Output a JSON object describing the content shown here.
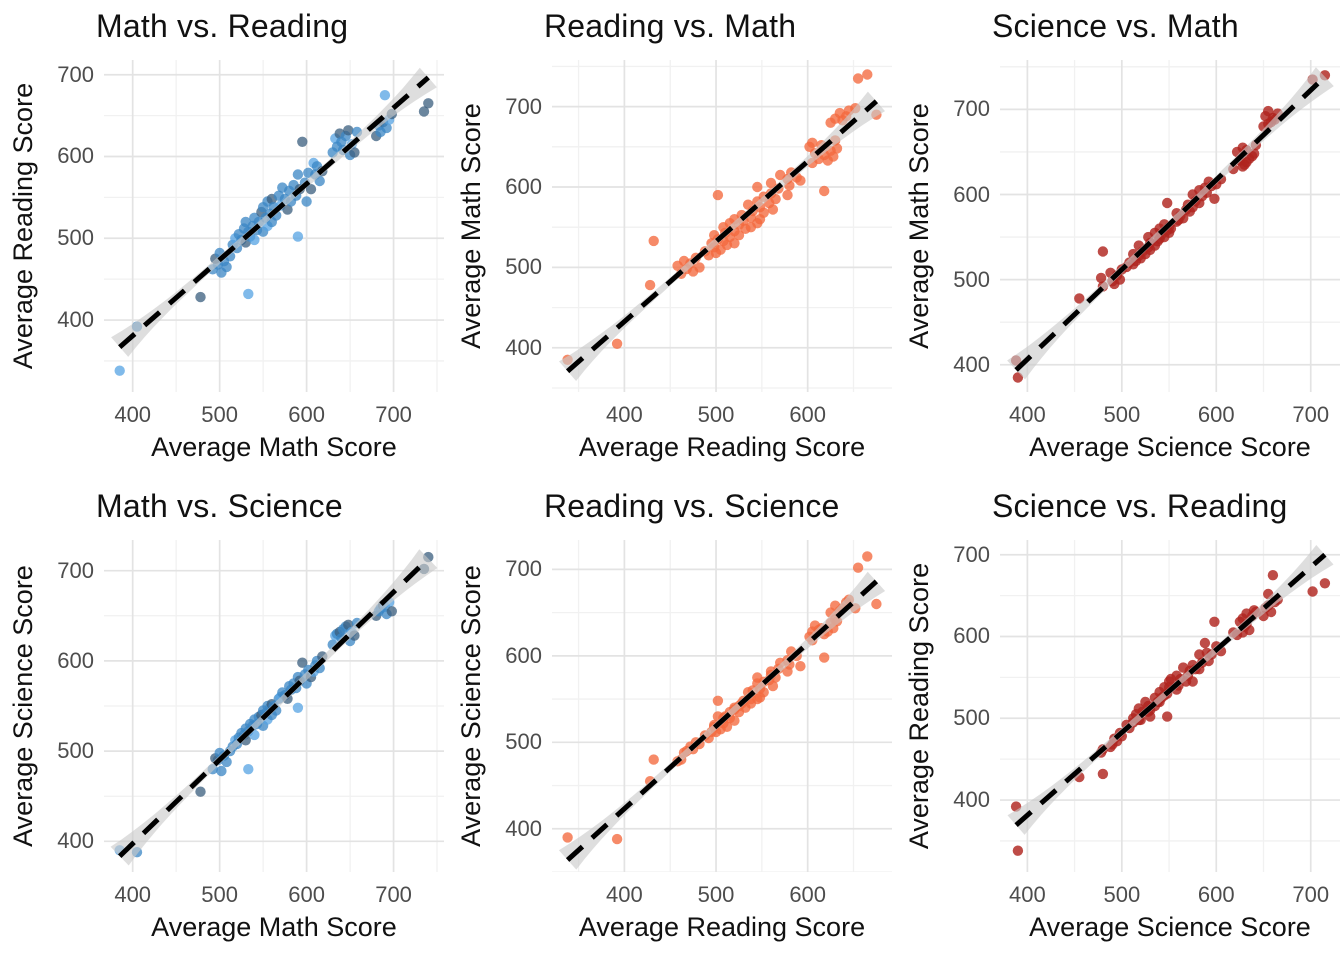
{
  "figure": {
    "background": "#ffffff",
    "grid_major_color": "#e3e3e3",
    "grid_minor_color": "#f1f1f1",
    "tick_label_color": "#4d4d4d",
    "text_color": "#111111",
    "trend_line_color": "#000000",
    "trend_band_color": "#c9c9c9"
  },
  "palette": {
    "blue": {
      "mid": "#3a86c4",
      "light": "#55a3e3",
      "dark": "#3a5e7d",
      "opacity": 0.75
    },
    "orange": {
      "mid": "#f4693d",
      "light": "#f4693d",
      "dark": "#f4693d",
      "opacity": 0.78
    },
    "red": {
      "mid": "#b0251f",
      "light": "#b0251f",
      "dark": "#b0251f",
      "opacity": 0.82
    }
  },
  "dataset": {
    "columns": [
      "math",
      "reading",
      "science",
      "shade"
    ],
    "points": [
      [
        385,
        338,
        390,
        "l"
      ],
      [
        405,
        392,
        388,
        ""
      ],
      [
        478,
        428,
        455,
        "d"
      ],
      [
        533,
        432,
        480,
        "l"
      ],
      [
        492,
        462,
        480,
        ""
      ],
      [
        498,
        468,
        490,
        ""
      ],
      [
        502,
        458,
        478,
        ""
      ],
      [
        505,
        472,
        495,
        ""
      ],
      [
        508,
        465,
        488,
        ""
      ],
      [
        512,
        478,
        500,
        ""
      ],
      [
        495,
        475,
        492,
        "d"
      ],
      [
        500,
        482,
        498,
        ""
      ],
      [
        515,
        492,
        505,
        ""
      ],
      [
        518,
        500,
        512,
        "l"
      ],
      [
        520,
        488,
        508,
        ""
      ],
      [
        522,
        505,
        515,
        ""
      ],
      [
        525,
        498,
        520,
        ""
      ],
      [
        528,
        512,
        518,
        ""
      ],
      [
        530,
        495,
        512,
        "d"
      ],
      [
        530,
        520,
        525,
        ""
      ],
      [
        533,
        508,
        522,
        ""
      ],
      [
        535,
        502,
        530,
        ""
      ],
      [
        538,
        515,
        528,
        ""
      ],
      [
        540,
        498,
        518,
        "l"
      ],
      [
        540,
        525,
        535,
        ""
      ],
      [
        543,
        510,
        530,
        ""
      ],
      [
        545,
        520,
        538,
        ""
      ],
      [
        548,
        532,
        540,
        "d"
      ],
      [
        550,
        508,
        528,
        ""
      ],
      [
        550,
        538,
        545,
        ""
      ],
      [
        553,
        525,
        542,
        ""
      ],
      [
        555,
        515,
        535,
        "l"
      ],
      [
        555,
        545,
        550,
        ""
      ],
      [
        558,
        530,
        548,
        ""
      ],
      [
        560,
        520,
        540,
        ""
      ],
      [
        560,
        548,
        552,
        "d"
      ],
      [
        562,
        538,
        550,
        ""
      ],
      [
        565,
        528,
        545,
        ""
      ],
      [
        568,
        552,
        558,
        ""
      ],
      [
        570,
        540,
        560,
        "l"
      ],
      [
        572,
        562,
        565,
        ""
      ],
      [
        575,
        548,
        562,
        ""
      ],
      [
        578,
        535,
        558,
        "d"
      ],
      [
        580,
        558,
        572,
        ""
      ],
      [
        582,
        545,
        568,
        ""
      ],
      [
        585,
        565,
        575,
        ""
      ],
      [
        588,
        552,
        570,
        ""
      ],
      [
        590,
        502,
        548,
        "l"
      ],
      [
        590,
        578,
        582,
        ""
      ],
      [
        592,
        560,
        578,
        "d"
      ],
      [
        595,
        618,
        598,
        "d"
      ],
      [
        598,
        568,
        585,
        ""
      ],
      [
        600,
        545,
        575,
        ""
      ],
      [
        602,
        580,
        590,
        ""
      ],
      [
        605,
        560,
        582,
        "d"
      ],
      [
        608,
        592,
        588,
        "l"
      ],
      [
        610,
        578,
        595,
        ""
      ],
      [
        612,
        588,
        600,
        ""
      ],
      [
        615,
        570,
        592,
        ""
      ],
      [
        618,
        582,
        605,
        "d"
      ],
      [
        630,
        605,
        618,
        ""
      ],
      [
        633,
        622,
        628,
        "l"
      ],
      [
        635,
        612,
        630,
        ""
      ],
      [
        638,
        628,
        632,
        "d"
      ],
      [
        640,
        618,
        625,
        ""
      ],
      [
        642,
        608,
        635,
        ""
      ],
      [
        645,
        625,
        638,
        ""
      ],
      [
        648,
        632,
        640,
        "d"
      ],
      [
        650,
        602,
        622,
        ""
      ],
      [
        652,
        615,
        632,
        "l"
      ],
      [
        655,
        605,
        628,
        "d"
      ],
      [
        658,
        630,
        642,
        ""
      ],
      [
        680,
        625,
        650,
        "d"
      ],
      [
        683,
        638,
        655,
        ""
      ],
      [
        685,
        630,
        658,
        ""
      ],
      [
        688,
        642,
        662,
        "d"
      ],
      [
        690,
        675,
        660,
        "l"
      ],
      [
        692,
        635,
        652,
        ""
      ],
      [
        695,
        645,
        665,
        "l"
      ],
      [
        698,
        652,
        655,
        "d"
      ],
      [
        735,
        655,
        702,
        "d"
      ],
      [
        740,
        665,
        715,
        "d"
      ]
    ]
  },
  "chart_data": [
    {
      "type": "scatter",
      "title": "Math vs. Reading",
      "xlabel": "Average Math Score",
      "ylabel": "Average Reading Score",
      "x_field": "math",
      "y_field": "reading",
      "x_ticks": [
        400,
        500,
        600,
        700
      ],
      "y_ticks": [
        400,
        500,
        600,
        700
      ],
      "xlim": [
        367,
        758
      ],
      "ylim": [
        312,
        718
      ],
      "point_style": "blue",
      "trend": {
        "fit": "linear",
        "line": "dashed-black",
        "band": "gray"
      }
    },
    {
      "type": "scatter",
      "title": "Reading vs. Math",
      "xlabel": "Average Reading Score",
      "ylabel": "Average Math Score",
      "x_field": "reading",
      "y_field": "math",
      "x_ticks": [
        400,
        500,
        600
      ],
      "y_ticks": [
        400,
        500,
        600,
        700
      ],
      "xlim": [
        321,
        692
      ],
      "ylim": [
        345,
        758
      ],
      "point_style": "orange",
      "trend": {
        "fit": "linear",
        "line": "dashed-black",
        "band": "gray"
      }
    },
    {
      "type": "scatter",
      "title": "Science vs. Math",
      "xlabel": "Average Science Score",
      "ylabel": "Average Math Score",
      "x_field": "science",
      "y_field": "math",
      "x_ticks": [
        400,
        500,
        600,
        700
      ],
      "y_ticks": [
        400,
        500,
        600,
        700
      ],
      "xlim": [
        371,
        731
      ],
      "ylim": [
        368,
        758
      ],
      "point_style": "red",
      "trend": {
        "fit": "linear",
        "line": "dashed-black",
        "band": "gray"
      }
    },
    {
      "type": "scatter",
      "title": "Math vs. Science",
      "xlabel": "Average Math Score",
      "ylabel": "Average Science Score",
      "x_field": "math",
      "y_field": "science",
      "x_ticks": [
        400,
        500,
        600,
        700
      ],
      "y_ticks": [
        400,
        500,
        600,
        700
      ],
      "xlim": [
        367,
        758
      ],
      "ylim": [
        366,
        734
      ],
      "point_style": "blue",
      "trend": {
        "fit": "linear",
        "line": "dashed-black",
        "band": "gray"
      }
    },
    {
      "type": "scatter",
      "title": "Reading vs. Science",
      "xlabel": "Average Reading Score",
      "ylabel": "Average Science Score",
      "x_field": "reading",
      "y_field": "science",
      "x_ticks": [
        400,
        500,
        600
      ],
      "y_ticks": [
        400,
        500,
        600,
        700
      ],
      "xlim": [
        321,
        692
      ],
      "ylim": [
        350,
        734
      ],
      "point_style": "orange",
      "trend": {
        "fit": "linear",
        "line": "dashed-black",
        "band": "gray"
      }
    },
    {
      "type": "scatter",
      "title": "Science vs. Reading",
      "xlabel": "Average Science Score",
      "ylabel": "Average Reading Score",
      "x_field": "science",
      "y_field": "reading",
      "x_ticks": [
        400,
        500,
        600,
        700
      ],
      "y_ticks": [
        400,
        500,
        600,
        700
      ],
      "xlim": [
        371,
        731
      ],
      "ylim": [
        312,
        718
      ],
      "point_style": "red",
      "trend": {
        "fit": "linear",
        "line": "dashed-black",
        "band": "gray"
      }
    }
  ]
}
